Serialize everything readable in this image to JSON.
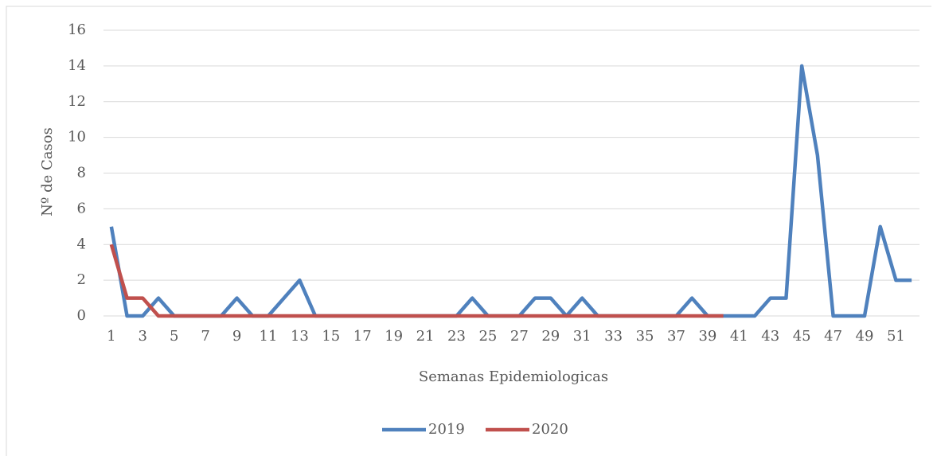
{
  "chart_data": {
    "type": "line",
    "x_label": "Semanas Epidemiologicas",
    "y_label": "Nº de Casos",
    "categories": [
      "1",
      null,
      "3",
      null,
      "5",
      null,
      "7",
      null,
      "9",
      null,
      "11",
      null,
      "13",
      null,
      "15",
      null,
      "17",
      null,
      "19",
      null,
      "21",
      null,
      "23",
      null,
      "25",
      null,
      "27",
      null,
      "29",
      null,
      "31",
      null,
      "33",
      null,
      "35",
      null,
      "37",
      null,
      "39",
      null,
      "41",
      null,
      "43",
      null,
      "45",
      null,
      "47",
      null,
      "49",
      null,
      "51",
      null
    ],
    "series": [
      {
        "name": "2019",
        "color": "#4f81bd",
        "values": [
          5,
          0,
          0,
          1,
          0,
          0,
          0,
          0,
          1,
          0,
          0,
          1,
          2,
          0,
          0,
          0,
          0,
          0,
          0,
          0,
          0,
          0,
          0,
          1,
          0,
          0,
          0,
          1,
          1,
          0,
          1,
          0,
          0,
          0,
          0,
          0,
          0,
          1,
          0,
          0,
          0,
          0,
          1,
          1,
          14,
          9,
          0,
          0,
          0,
          5,
          2,
          2
        ]
      },
      {
        "name": "2020",
        "color": "#c0504d",
        "values": [
          4,
          1,
          1,
          0,
          0,
          0,
          0,
          0,
          0,
          0,
          0,
          0,
          0,
          0,
          0,
          0,
          0,
          0,
          0,
          0,
          0,
          0,
          0,
          0,
          0,
          0,
          0,
          0,
          0,
          0,
          0,
          0,
          0,
          0,
          0,
          0,
          0,
          0,
          0,
          0,
          null,
          null,
          null,
          null,
          null,
          null,
          null,
          null,
          null,
          null,
          null,
          null
        ]
      }
    ],
    "ylim": [
      0,
      16
    ],
    "yticks": [
      0,
      2,
      4,
      6,
      8,
      10,
      12,
      14,
      16
    ],
    "grid": true,
    "legend": "bottom"
  }
}
